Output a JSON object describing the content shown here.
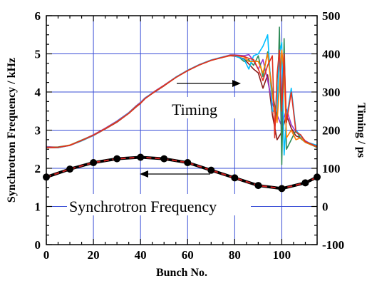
{
  "chart_data": {
    "type": "line",
    "xlabel": "Bunch No.",
    "ylabel_left": "Synchrotron Frequency / kHz",
    "ylabel_right": "Timing / ps",
    "xlim": [
      0,
      115
    ],
    "ylim_left": [
      0,
      6
    ],
    "ylim_right": [
      -100,
      500
    ],
    "x_ticks": [
      0,
      20,
      40,
      60,
      80,
      100
    ],
    "y_left_ticks": [
      0,
      1,
      2,
      3,
      4,
      5,
      6
    ],
    "y_right_ticks": [
      -100,
      0,
      100,
      200,
      300,
      400,
      500
    ],
    "grid": true,
    "annotations": [
      {
        "text": "Timing",
        "arrow": "right"
      },
      {
        "text": "Synchrotron Frequency",
        "arrow": "left"
      }
    ],
    "series": [
      {
        "axis": "right",
        "color": "#8B1A1A",
        "x": [
          0,
          5,
          10,
          15,
          20,
          25,
          30,
          35,
          38,
          40,
          42,
          44,
          46,
          50,
          55,
          60,
          65,
          70,
          75,
          78,
          80,
          84,
          88,
          90,
          92,
          94,
          96,
          98,
          100,
          102,
          104,
          106,
          108,
          110,
          115
        ],
        "y": [
          154,
          154,
          160,
          172,
          186,
          203,
          221,
          244,
          260,
          270,
          283,
          292,
          300,
          316,
          338,
          356,
          371,
          383,
          391,
          395,
          394,
          387,
          360,
          350,
          310,
          345,
          240,
          175,
          195,
          240,
          205,
          185,
          180,
          170,
          155
        ]
      },
      {
        "axis": "right",
        "color": "#9933CC",
        "x": [
          0,
          5,
          10,
          15,
          20,
          25,
          30,
          35,
          38,
          40,
          42,
          44,
          46,
          50,
          55,
          60,
          65,
          70,
          75,
          78,
          80,
          84,
          86,
          88,
          90,
          92,
          94,
          96,
          98,
          100,
          102,
          104,
          106,
          108,
          110,
          115
        ],
        "y": [
          157,
          155,
          160,
          173,
          188,
          205,
          224,
          246,
          263,
          273,
          285,
          293,
          302,
          318,
          339,
          357,
          372,
          384,
          392,
          397,
          397,
          395,
          398,
          382,
          360,
          385,
          330,
          270,
          240,
          210,
          255,
          215,
          195,
          185,
          172,
          155
        ]
      },
      {
        "axis": "right",
        "color": "#2E8B57",
        "x": [
          0,
          5,
          10,
          15,
          20,
          25,
          30,
          35,
          38,
          40,
          42,
          44,
          46,
          50,
          55,
          60,
          65,
          70,
          75,
          78,
          80,
          82,
          84,
          86,
          88,
          90,
          92,
          94,
          96,
          98,
          99,
          100,
          101,
          102,
          104,
          106,
          108,
          110,
          115
        ],
        "y": [
          155,
          156,
          161,
          174,
          187,
          204,
          222,
          245,
          262,
          271,
          284,
          292,
          301,
          317,
          338,
          356,
          371,
          383,
          391,
          396,
          396,
          390,
          380,
          385,
          370,
          395,
          340,
          405,
          300,
          230,
          470,
          110,
          440,
          150,
          175,
          200,
          178,
          168,
          155
        ]
      },
      {
        "axis": "right",
        "color": "#00BFFF",
        "x": [
          0,
          5,
          10,
          15,
          20,
          25,
          30,
          35,
          38,
          40,
          42,
          44,
          46,
          50,
          55,
          60,
          65,
          70,
          75,
          78,
          80,
          84,
          86,
          88,
          90,
          92,
          94,
          96,
          98,
          99,
          100,
          101,
          102,
          104,
          106,
          108,
          110,
          115
        ],
        "y": [
          156,
          154,
          160,
          172,
          186,
          204,
          223,
          245,
          261,
          272,
          284,
          293,
          301,
          317,
          339,
          357,
          372,
          384,
          392,
          396,
          395,
          385,
          360,
          395,
          400,
          420,
          450,
          250,
          250,
          400,
          430,
          135,
          230,
          310,
          200,
          185,
          170,
          160
        ]
      },
      {
        "axis": "right",
        "color": "#FF7F00",
        "x": [
          0,
          5,
          10,
          15,
          20,
          25,
          30,
          35,
          38,
          40,
          42,
          44,
          46,
          50,
          55,
          60,
          65,
          70,
          75,
          78,
          80,
          84,
          86,
          88,
          90,
          92,
          94,
          96,
          98,
          100,
          101,
          102,
          104,
          106,
          108,
          110,
          115
        ],
        "y": [
          155,
          155,
          161,
          173,
          187,
          204,
          222,
          244,
          261,
          271,
          283,
          292,
          301,
          317,
          338,
          356,
          371,
          383,
          391,
          395,
          396,
          392,
          380,
          380,
          380,
          350,
          400,
          290,
          220,
          410,
          350,
          180,
          200,
          175,
          180,
          168,
          156
        ]
      },
      {
        "axis": "right",
        "color": "#E03020",
        "x": [
          0,
          5,
          10,
          15,
          20,
          25,
          30,
          35,
          38,
          40,
          42,
          44,
          46,
          50,
          55,
          60,
          65,
          70,
          75,
          78,
          80,
          84,
          86,
          88,
          90,
          92,
          94,
          96,
          97,
          98,
          99,
          100,
          101,
          102,
          104,
          106,
          108,
          110,
          115
        ],
        "y": [
          155,
          155,
          160,
          173,
          187,
          204,
          222,
          244,
          261,
          271,
          283,
          292,
          301,
          317,
          338,
          356,
          371,
          383,
          391,
          396,
          396,
          393,
          388,
          385,
          360,
          330,
          370,
          395,
          180,
          345,
          410,
          250,
          400,
          220,
          300,
          195,
          188,
          170,
          157
        ]
      },
      {
        "axis": "left",
        "color": "#D02020",
        "style": "dashed",
        "markers": true,
        "marker_color": "#000000",
        "x": [
          0,
          10,
          20,
          30,
          40,
          50,
          60,
          70,
          80,
          90,
          100,
          110,
          115
        ],
        "y": [
          1.77,
          1.98,
          2.15,
          2.25,
          2.29,
          2.25,
          2.15,
          1.95,
          1.75,
          1.55,
          1.47,
          1.62,
          1.77
        ]
      }
    ]
  }
}
